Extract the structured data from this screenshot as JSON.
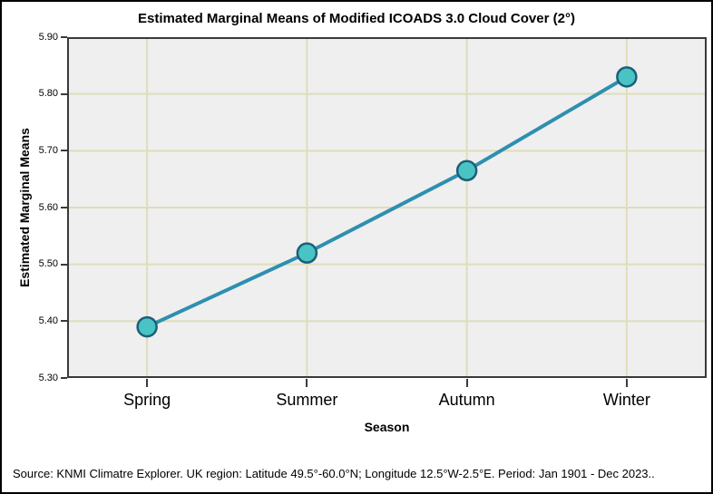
{
  "title": "Estimated Marginal Means of Modified ICOADS 3.0 Cloud Cover (2°)",
  "footer": {
    "text": "Source: KNMI Climatre Explorer. UK region: Latitude 49.5°-60.0°N; Longitude 12.5°W-2.5°E. Period: Jan 1901 - Dec 2023.."
  },
  "chart_data": {
    "type": "line",
    "title": "Estimated Marginal Means of Modified ICOADS 3.0 Cloud Cover (2°)",
    "xlabel": "Season",
    "ylabel": "Estimated Marginal Means",
    "categories": [
      "Spring",
      "Summer",
      "Autumn",
      "Winter"
    ],
    "values": [
      5.39,
      5.52,
      5.665,
      5.83
    ],
    "ylim": [
      5.3,
      5.9
    ],
    "ytick_labels": [
      "5.30",
      "5.40",
      "5.50",
      "5.60",
      "5.70",
      "5.80",
      "5.90"
    ],
    "grid": true,
    "legend": "none",
    "marker": "circle"
  },
  "colors": {
    "line": "#2e8fb0",
    "marker_fill": "#4ac3c5",
    "marker_stroke": "#1b5f78",
    "grid": "#dfddbb",
    "plot_bg": "#efefef",
    "frame": "#3a3a3a",
    "text": "#000000"
  }
}
